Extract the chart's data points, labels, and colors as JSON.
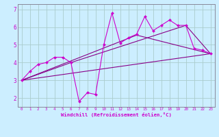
{
  "xlabel": "Windchill (Refroidissement éolien,°C)",
  "bg_color": "#cceeff",
  "grid_color": "#aacccc",
  "line_color1": "#cc00cc",
  "line_color2": "#880088",
  "xlim": [
    -0.5,
    23.5
  ],
  "ylim": [
    1.5,
    7.3
  ],
  "yticks": [
    2,
    3,
    4,
    5,
    6,
    7
  ],
  "xticks": [
    0,
    1,
    2,
    3,
    4,
    5,
    6,
    7,
    8,
    9,
    10,
    11,
    12,
    13,
    14,
    15,
    16,
    17,
    18,
    19,
    20,
    21,
    22,
    23
  ],
  "series1_x": [
    0,
    1,
    2,
    3,
    4,
    5,
    6,
    7,
    8,
    9,
    10,
    11,
    12,
    13,
    14,
    15,
    16,
    17,
    18,
    19,
    20,
    21,
    22,
    23
  ],
  "series1_y": [
    3.0,
    3.5,
    3.9,
    4.0,
    4.3,
    4.3,
    4.0,
    1.8,
    2.3,
    2.2,
    5.0,
    6.8,
    5.1,
    5.4,
    5.6,
    6.6,
    5.8,
    6.1,
    6.4,
    6.1,
    6.1,
    4.8,
    4.7,
    4.5
  ],
  "series2_x": [
    0,
    23
  ],
  "series2_y": [
    3.0,
    4.5
  ],
  "series3_x": [
    0,
    6,
    20,
    23
  ],
  "series3_y": [
    3.0,
    4.0,
    6.1,
    4.5
  ],
  "series4_x": [
    0,
    14,
    23
  ],
  "series4_y": [
    3.0,
    5.55,
    4.5
  ],
  "lw": 0.8,
  "ms": 2.2
}
